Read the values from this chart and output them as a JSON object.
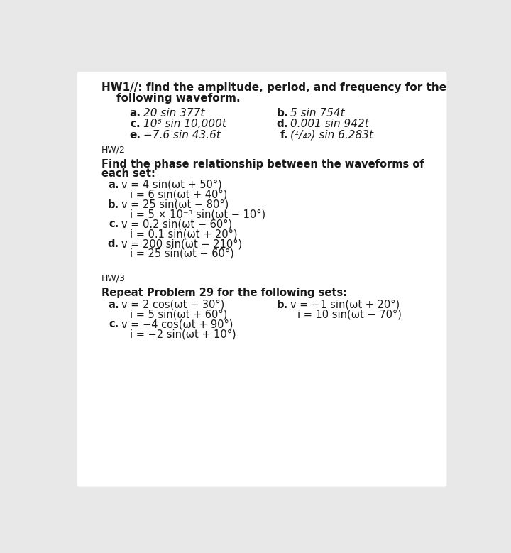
{
  "bg_color": "#e8e8e8",
  "box_color": "#ffffff",
  "text_color": "#1a1a1a",
  "hw1_header1": "HW1//: find the amplitude, period, and frequency for the",
  "hw1_header2": "    following waveform.",
  "hw1_col1": [
    [
      "a.",
      "20 sin 377t"
    ],
    [
      "c.",
      "10⁶ sin 10,000t"
    ],
    [
      "e.",
      "−7.6 sin 43.6t"
    ]
  ],
  "hw1_col2": [
    [
      "b.",
      "5 sin 754t"
    ],
    [
      "d.",
      "0.001 sin 942t"
    ],
    [
      "f.",
      "(¹/₄₂) sin 6.283t"
    ]
  ],
  "hw2_label": "HW/2",
  "hw2_sub1": "Find the phase relationship between the waveforms of",
  "hw2_sub2": "each set:",
  "hw2_lines": [
    [
      "a.",
      "v = 4 sin(ωt + 50°)"
    ],
    [
      "",
      "i = 6 sin(ωt + 40°)"
    ],
    [
      "b.",
      "v = 25 sin(ωt − 80°)"
    ],
    [
      "",
      "i = 5 × 10⁻³ sin(ωt − 10°)"
    ],
    [
      "c.",
      "v = 0.2 sin(ωt − 60°)"
    ],
    [
      "",
      "i = 0.1 sin(ωt + 20°)"
    ],
    [
      "d.",
      "v = 200 sin(ωt − 210°)"
    ],
    [
      "",
      "i = 25 sin(ωt − 60°)"
    ]
  ],
  "hw3_label": "HW/3",
  "hw3_sub": "Repeat Problem 29 for the following sets:",
  "hw3_col1": [
    [
      "a.",
      "v = 2 cos(ωt − 30°)"
    ],
    [
      "",
      "i = 5 sin(ωt + 60°)"
    ],
    [
      "c.",
      "v = −4 cos(ωt + 90°)"
    ],
    [
      "",
      "i = −2 sin(ωt + 10°)"
    ]
  ],
  "hw3_col2": [
    [
      "b.",
      "v = −1 sin(ωt + 20°)"
    ],
    [
      "",
      "i = 10 sin(ωt − 70°)"
    ]
  ]
}
